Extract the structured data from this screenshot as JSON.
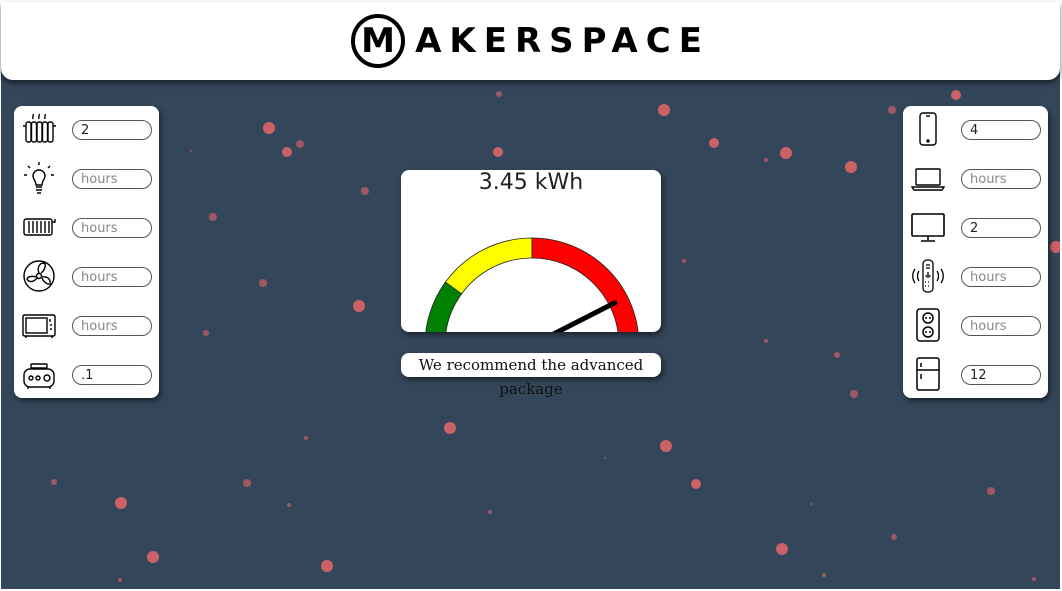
{
  "header": {
    "logo_letter": "M",
    "logo_text": "AKERSPACE"
  },
  "left_panel": [
    {
      "icon": "radiator-icon",
      "value": "2",
      "placeholder": "hours"
    },
    {
      "icon": "light-bulb-icon",
      "value": "",
      "placeholder": "hours"
    },
    {
      "icon": "heater-icon",
      "value": "",
      "placeholder": "hours"
    },
    {
      "icon": "fan-icon",
      "value": "",
      "placeholder": "hours"
    },
    {
      "icon": "microwave-icon",
      "value": "",
      "placeholder": "hours"
    },
    {
      "icon": "stove-icon",
      "value": ".1",
      "placeholder": "hours"
    }
  ],
  "right_panel": [
    {
      "icon": "phone-icon",
      "value": "4",
      "placeholder": "hours"
    },
    {
      "icon": "laptop-icon",
      "value": "",
      "placeholder": "hours"
    },
    {
      "icon": "monitor-icon",
      "value": "2",
      "placeholder": "hours"
    },
    {
      "icon": "smart-speaker-icon",
      "value": "",
      "placeholder": "hours"
    },
    {
      "icon": "power-outlet-icon",
      "value": "",
      "placeholder": "hours"
    },
    {
      "icon": "refrigerator-icon",
      "value": "12",
      "placeholder": "hours"
    }
  ],
  "gauge": {
    "reading": "3.45 kWh",
    "needle_fraction": 0.85,
    "zones": [
      {
        "color": "#008000",
        "from": 0,
        "to": 0.2
      },
      {
        "color": "#ffff00",
        "from": 0.2,
        "to": 0.5
      },
      {
        "color": "#ff0000",
        "from": 0.5,
        "to": 1
      }
    ]
  },
  "recommendation": "We recommend the advanced package",
  "colors": {
    "background": "#34465a",
    "dot": "#e8666b"
  }
}
